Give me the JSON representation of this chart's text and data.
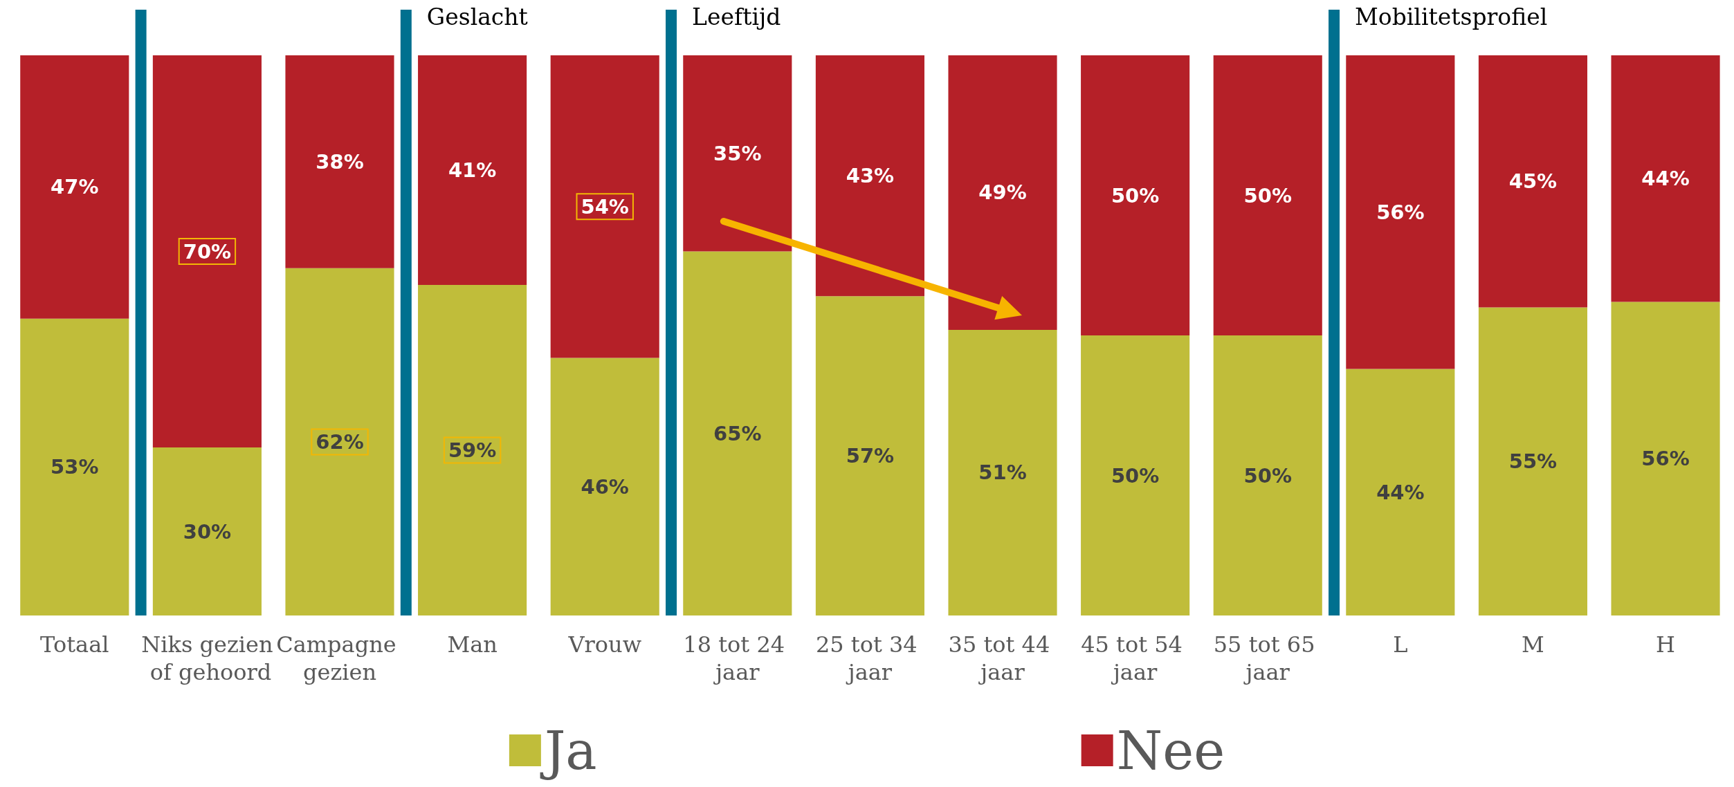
{
  "chart_data": {
    "type": "bar",
    "stacked": true,
    "legend": "bottom",
    "tick_labels": "x",
    "annotations": [
      "Geslacht",
      "Leeftijd",
      "Mobilitetsprofiel"
    ],
    "categories": [
      "Totaal",
      "Niks gezien of gehoord",
      "Campagne gezien",
      "Man",
      "Vrouw",
      "18 tot 24 jaar",
      "25 tot 34 jaar",
      "35 tot 44 jaar",
      "45 tot 54 jaar",
      "55 tot 65 jaar",
      "L",
      "M",
      "H"
    ],
    "series": [
      {
        "name": "Ja",
        "color": "#c0bd3a",
        "values": [
          53,
          30,
          62,
          59,
          46,
          65,
          57,
          51,
          50,
          50,
          44,
          55,
          56
        ],
        "value_labels": [
          "53%",
          "30%",
          "62%",
          "59%",
          "46%",
          "65%",
          "57%",
          "51%",
          "50%",
          "50%",
          "44%",
          "55%",
          "56%"
        ]
      },
      {
        "name": "Nee",
        "color": "#b52028",
        "values": [
          47,
          70,
          38,
          41,
          54,
          35,
          43,
          49,
          50,
          50,
          56,
          45,
          44
        ],
        "value_labels": [
          "47%",
          "70%",
          "38%",
          "41%",
          "54%",
          "35%",
          "43%",
          "49%",
          "50%",
          "50%",
          "56%",
          "45%",
          "44%"
        ]
      }
    ]
  }
}
